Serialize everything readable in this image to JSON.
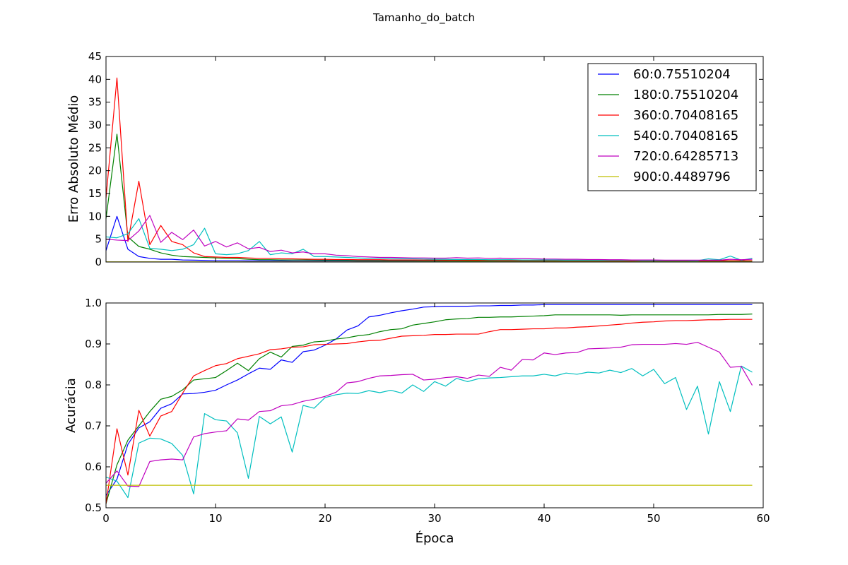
{
  "chart_data": {
    "title": "Tamanho_do_batch",
    "xlabel": "Época",
    "xlim": [
      0,
      60
    ],
    "xticks": [
      "0",
      "10",
      "20",
      "30",
      "40",
      "50",
      "60"
    ],
    "x": [
      0,
      1,
      2,
      3,
      4,
      5,
      6,
      7,
      8,
      9,
      10,
      11,
      12,
      13,
      14,
      15,
      16,
      17,
      18,
      19,
      20,
      21,
      22,
      23,
      24,
      25,
      26,
      27,
      28,
      29,
      30,
      31,
      32,
      33,
      34,
      35,
      36,
      37,
      38,
      39,
      40,
      41,
      42,
      43,
      44,
      45,
      46,
      47,
      48,
      49,
      50,
      51,
      52,
      53,
      54,
      55,
      56,
      57,
      58,
      59
    ],
    "legend_position": "top-right",
    "series": [
      {
        "name": "60:0.75510204",
        "color": "#0000ff"
      },
      {
        "name": "180:0.75510204",
        "color": "#008000"
      },
      {
        "name": "360:0.70408165",
        "color": "#ff0000"
      },
      {
        "name": "540:0.70408165",
        "color": "#00bfbf"
      },
      {
        "name": "720:0.64285713",
        "color": "#bf00bf"
      },
      {
        "name": "900:0.4489796",
        "color": "#bfbf00"
      }
    ],
    "panels": [
      {
        "type": "line",
        "ylabel": "Erro Absoluto Médio",
        "ylim": [
          0,
          45
        ],
        "yticks": [
          "0",
          "5",
          "10",
          "15",
          "20",
          "25",
          "30",
          "35",
          "40",
          "45"
        ],
        "values": [
          [
            2.5,
            10.0,
            2.8,
            1.2,
            0.8,
            0.6,
            0.6,
            0.45,
            0.4,
            0.35,
            0.3,
            0.3,
            0.3,
            0.25,
            0.25,
            0.25,
            0.25,
            0.2,
            0.2,
            0.2,
            0.2,
            0.2,
            0.2,
            0.18,
            0.18,
            0.17,
            0.16,
            0.15,
            0.15,
            0.14,
            0.13,
            0.13,
            0.12,
            0.12,
            0.12,
            0.12,
            0.11,
            0.11,
            0.1,
            0.1,
            0.1,
            0.1,
            0.1,
            0.1,
            0.1,
            0.1,
            0.1,
            0.1,
            0.1,
            0.1,
            0.1,
            0.1,
            0.1,
            0.1,
            0.1,
            0.1,
            0.1,
            0.1,
            0.1,
            0.1
          ],
          [
            9.5,
            28.0,
            5.5,
            3.4,
            2.8,
            2.0,
            1.5,
            1.2,
            1.1,
            1.0,
            0.9,
            0.8,
            0.75,
            0.6,
            0.5,
            0.5,
            0.45,
            0.45,
            0.45,
            0.42,
            0.4,
            0.4,
            0.38,
            0.35,
            0.35,
            0.32,
            0.3,
            0.3,
            0.3,
            0.28,
            0.28,
            0.27,
            0.27,
            0.25,
            0.25,
            0.25,
            0.25,
            0.24,
            0.23,
            0.22,
            0.22,
            0.21,
            0.21,
            0.2,
            0.2,
            0.2,
            0.2,
            0.2,
            0.2,
            0.2,
            0.2,
            0.2,
            0.2,
            0.2,
            0.2,
            0.2,
            0.2,
            0.2,
            0.2,
            0.2
          ],
          [
            14.0,
            40.3,
            4.5,
            17.7,
            3.8,
            8.0,
            4.5,
            3.8,
            2.0,
            1.2,
            1.1,
            1.0,
            1.0,
            0.9,
            0.8,
            0.8,
            0.7,
            0.7,
            0.65,
            0.6,
            0.6,
            0.55,
            0.55,
            0.5,
            0.5,
            0.5,
            0.45,
            0.45,
            0.45,
            0.42,
            0.42,
            0.4,
            0.4,
            0.4,
            0.38,
            0.38,
            0.35,
            0.35,
            0.33,
            0.33,
            0.32,
            0.32,
            0.3,
            0.3,
            0.3,
            0.3,
            0.3,
            0.3,
            0.3,
            0.3,
            0.3,
            0.3,
            0.3,
            0.3,
            0.3,
            0.3,
            0.3,
            0.3,
            0.3,
            0.3
          ],
          [
            5.5,
            5.3,
            6.2,
            9.5,
            3.0,
            2.8,
            2.5,
            2.8,
            3.8,
            7.4,
            1.8,
            1.6,
            1.8,
            2.5,
            4.5,
            1.6,
            2.0,
            1.8,
            2.8,
            1.2,
            1.2,
            1.1,
            1.0,
            0.9,
            0.8,
            0.8,
            0.7,
            0.7,
            0.7,
            0.65,
            0.6,
            0.6,
            0.55,
            0.55,
            0.55,
            0.5,
            0.5,
            0.5,
            0.45,
            0.45,
            0.45,
            0.45,
            0.4,
            0.4,
            0.4,
            0.4,
            0.4,
            0.4,
            0.4,
            0.35,
            0.35,
            0.35,
            0.35,
            0.35,
            0.3,
            0.7,
            0.5,
            1.3,
            0.4,
            0.8
          ],
          [
            5.0,
            4.8,
            4.7,
            6.8,
            10.2,
            4.3,
            6.5,
            4.9,
            7.0,
            3.5,
            4.5,
            3.3,
            4.2,
            2.9,
            3.2,
            2.3,
            2.6,
            2.0,
            2.2,
            1.8,
            1.8,
            1.5,
            1.4,
            1.2,
            1.1,
            1.0,
            1.0,
            0.95,
            0.9,
            0.9,
            0.85,
            0.85,
            0.95,
            0.85,
            0.9,
            0.8,
            0.85,
            0.75,
            0.75,
            0.7,
            0.65,
            0.65,
            0.6,
            0.6,
            0.55,
            0.55,
            0.5,
            0.5,
            0.45,
            0.45,
            0.45,
            0.4,
            0.4,
            0.4,
            0.4,
            0.4,
            0.4,
            0.6,
            0.5,
            0.6
          ],
          [
            0.05,
            0.05,
            0.05,
            0.05,
            0.05,
            0.05,
            0.05,
            0.05,
            0.05,
            0.05,
            0.05,
            0.05,
            0.05,
            0.05,
            0.05,
            0.05,
            0.05,
            0.05,
            0.05,
            0.05,
            0.05,
            0.05,
            0.05,
            0.05,
            0.05,
            0.05,
            0.05,
            0.05,
            0.05,
            0.05,
            0.05,
            0.05,
            0.05,
            0.05,
            0.05,
            0.05,
            0.05,
            0.05,
            0.05,
            0.05,
            0.05,
            0.05,
            0.05,
            0.05,
            0.05,
            0.05,
            0.05,
            0.05,
            0.05,
            0.05,
            0.05,
            0.05,
            0.05,
            0.05,
            0.05,
            0.05,
            0.05,
            0.05,
            0.05,
            0.05
          ]
        ]
      },
      {
        "type": "line",
        "ylabel": "Acurácia",
        "ylim": [
          0.5,
          1.0
        ],
        "yticks": [
          "0.5",
          "0.6",
          "0.7",
          "0.8",
          "0.9",
          "1.0"
        ],
        "values": [
          [
            0.53,
            0.57,
            0.655,
            0.695,
            0.71,
            0.743,
            0.754,
            0.778,
            0.779,
            0.782,
            0.787,
            0.8,
            0.812,
            0.827,
            0.841,
            0.838,
            0.861,
            0.855,
            0.881,
            0.885,
            0.897,
            0.912,
            0.934,
            0.944,
            0.966,
            0.97,
            0.976,
            0.981,
            0.985,
            0.99,
            0.991,
            0.992,
            0.992,
            0.992,
            0.993,
            0.993,
            0.994,
            0.994,
            0.995,
            0.995,
            0.996,
            0.996,
            0.996,
            0.996,
            0.996,
            0.996,
            0.996,
            0.996,
            0.996,
            0.996,
            0.996,
            0.996,
            0.996,
            0.996,
            0.996,
            0.996,
            0.996,
            0.996,
            0.996,
            0.996
          ],
          [
            0.51,
            0.605,
            0.665,
            0.7,
            0.735,
            0.765,
            0.772,
            0.788,
            0.812,
            0.815,
            0.818,
            0.835,
            0.853,
            0.835,
            0.864,
            0.88,
            0.868,
            0.894,
            0.897,
            0.905,
            0.907,
            0.912,
            0.915,
            0.92,
            0.923,
            0.93,
            0.935,
            0.937,
            0.946,
            0.95,
            0.954,
            0.959,
            0.961,
            0.962,
            0.965,
            0.965,
            0.966,
            0.966,
            0.967,
            0.968,
            0.969,
            0.971,
            0.971,
            0.971,
            0.971,
            0.971,
            0.971,
            0.97,
            0.971,
            0.971,
            0.971,
            0.971,
            0.971,
            0.971,
            0.971,
            0.971,
            0.972,
            0.972,
            0.972,
            0.973
          ],
          [
            0.51,
            0.693,
            0.58,
            0.738,
            0.675,
            0.724,
            0.735,
            0.78,
            0.822,
            0.835,
            0.847,
            0.852,
            0.864,
            0.87,
            0.876,
            0.886,
            0.888,
            0.892,
            0.893,
            0.898,
            0.899,
            0.9,
            0.901,
            0.905,
            0.908,
            0.909,
            0.914,
            0.919,
            0.92,
            0.921,
            0.923,
            0.923,
            0.924,
            0.924,
            0.924,
            0.93,
            0.935,
            0.935,
            0.936,
            0.937,
            0.937,
            0.939,
            0.939,
            0.941,
            0.942,
            0.944,
            0.946,
            0.948,
            0.951,
            0.953,
            0.954,
            0.956,
            0.957,
            0.957,
            0.958,
            0.959,
            0.959,
            0.96,
            0.96,
            0.96
          ],
          [
            0.575,
            0.565,
            0.525,
            0.658,
            0.67,
            0.668,
            0.657,
            0.628,
            0.534,
            0.73,
            0.715,
            0.712,
            0.683,
            0.572,
            0.723,
            0.705,
            0.722,
            0.636,
            0.75,
            0.743,
            0.769,
            0.776,
            0.78,
            0.779,
            0.786,
            0.781,
            0.787,
            0.78,
            0.8,
            0.784,
            0.808,
            0.797,
            0.816,
            0.808,
            0.815,
            0.817,
            0.818,
            0.82,
            0.822,
            0.822,
            0.826,
            0.822,
            0.829,
            0.826,
            0.831,
            0.829,
            0.836,
            0.83,
            0.84,
            0.822,
            0.838,
            0.803,
            0.818,
            0.74,
            0.797,
            0.68,
            0.808,
            0.735,
            0.846,
            0.831
          ],
          [
            0.56,
            0.59,
            0.553,
            0.552,
            0.613,
            0.617,
            0.619,
            0.617,
            0.673,
            0.681,
            0.685,
            0.688,
            0.717,
            0.714,
            0.735,
            0.737,
            0.749,
            0.752,
            0.76,
            0.765,
            0.772,
            0.782,
            0.805,
            0.808,
            0.816,
            0.822,
            0.823,
            0.825,
            0.826,
            0.812,
            0.814,
            0.818,
            0.82,
            0.816,
            0.824,
            0.821,
            0.843,
            0.836,
            0.862,
            0.861,
            0.878,
            0.874,
            0.878,
            0.879,
            0.888,
            0.889,
            0.89,
            0.892,
            0.898,
            0.899,
            0.899,
            0.899,
            0.901,
            0.899,
            0.904,
            0.892,
            0.88,
            0.843,
            0.845,
            0.799
          ],
          [
            0.555,
            0.555,
            0.555,
            0.555,
            0.555,
            0.555,
            0.555,
            0.555,
            0.555,
            0.555,
            0.555,
            0.555,
            0.555,
            0.555,
            0.555,
            0.555,
            0.555,
            0.555,
            0.555,
            0.555,
            0.555,
            0.555,
            0.555,
            0.555,
            0.555,
            0.555,
            0.555,
            0.555,
            0.555,
            0.555,
            0.555,
            0.555,
            0.555,
            0.555,
            0.555,
            0.555,
            0.555,
            0.555,
            0.555,
            0.555,
            0.555,
            0.555,
            0.555,
            0.555,
            0.555,
            0.555,
            0.555,
            0.555,
            0.555,
            0.555,
            0.555,
            0.555,
            0.555,
            0.555,
            0.555,
            0.555,
            0.555,
            0.555,
            0.555,
            0.555
          ]
        ]
      }
    ]
  }
}
